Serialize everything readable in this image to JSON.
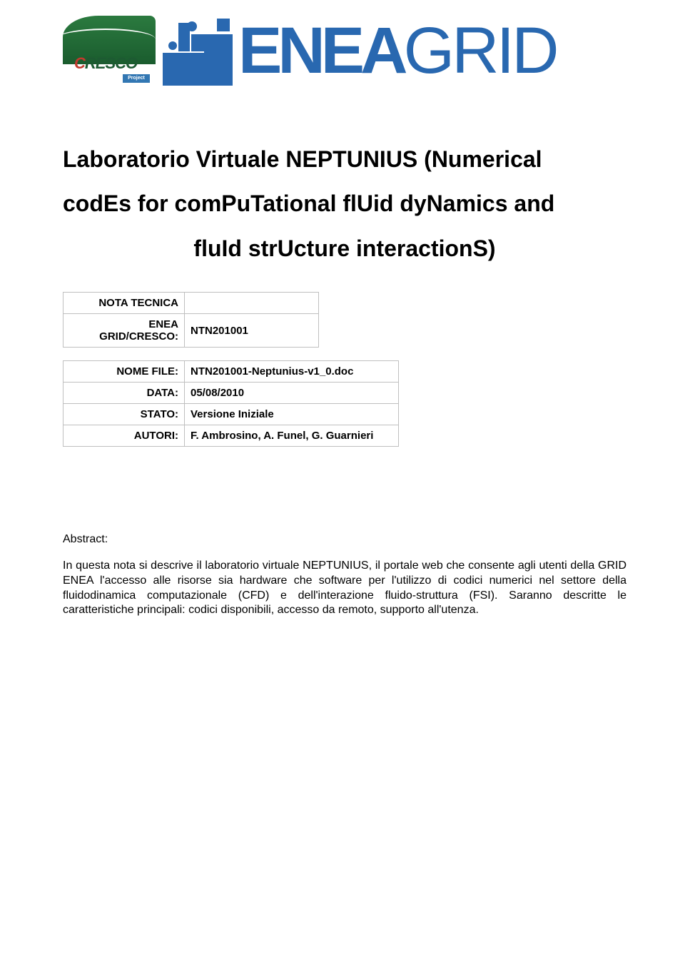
{
  "header": {
    "cresco_label": "CRESCO",
    "cresco_project": "Project",
    "eneagrid_bold": "ENEA",
    "eneagrid_light": "GRID"
  },
  "title": {
    "line1": "Laboratorio Virtuale NEPTUNIUS (Numerical",
    "line2": "codEs for comPuTational flUid dyNamics and",
    "line3": "fluId strUcture interactionS)"
  },
  "meta": {
    "table1": [
      {
        "label": "NOTA TECNICA",
        "value": ""
      },
      {
        "label": "ENEA GRID/CRESCO:",
        "value": "NTN201001"
      }
    ],
    "table2": [
      {
        "label": "NOME FILE:",
        "value": "NTN201001-Neptunius-v1_0.doc"
      },
      {
        "label": "DATA:",
        "value": "05/08/2010"
      },
      {
        "label": "STATO:",
        "value": "Versione Iniziale"
      },
      {
        "label": "AUTORI:",
        "value": "F. Ambrosino, A. Funel, G. Guarnieri"
      }
    ]
  },
  "abstract": {
    "label": "Abstract:",
    "body": "In questa nota si descrive il laboratorio virtuale NEPTUNIUS, il portale web che consente agli utenti della GRID ENEA l'accesso alle risorse sia hardware che software per l'utilizzo di codici numerici nel settore della fluidodinamica computazionale (CFD) e dell'interazione fluido-struttura (FSI). Saranno descritte le caratteristiche principali: codici disponibili, accesso da remoto, supporto all'utenza."
  },
  "colors": {
    "brand_blue": "#2968b0",
    "cresco_green": "#1d5a32",
    "cresco_red": "#c23a2e",
    "border_gray": "#bfbfbf",
    "text_black": "#000000",
    "background": "#ffffff"
  },
  "typography": {
    "title_fontsize": 32,
    "body_fontsize": 16,
    "meta_fontsize": 15,
    "logo_fontsize": 92
  }
}
